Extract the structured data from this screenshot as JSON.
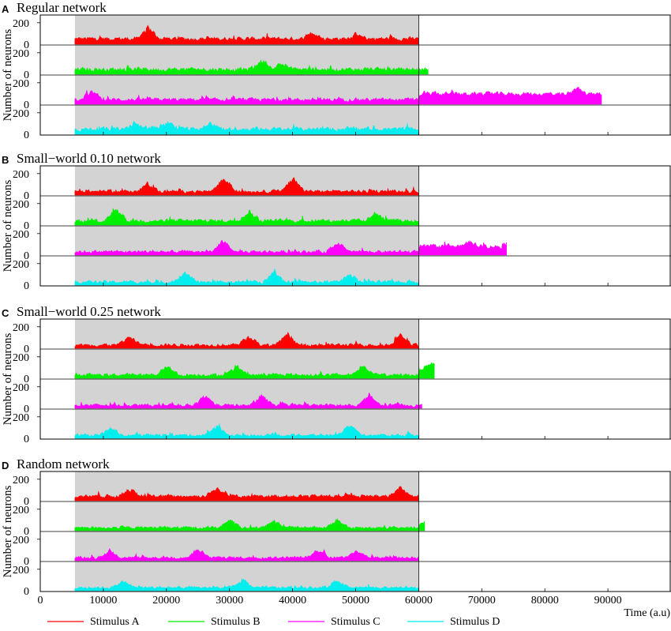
{
  "chart_data": {
    "type": "area",
    "xlabel": "Time (a.u)",
    "ylabel": "Number of neurons",
    "xlim": [
      0,
      100000
    ],
    "x_ticks": [
      0,
      10000,
      20000,
      30000,
      40000,
      50000,
      60000,
      70000,
      80000,
      90000
    ],
    "y_ticks": [
      0,
      200
    ],
    "ylim_per_trace": [
      0,
      250
    ],
    "stimulus_window": [
      5500,
      60000
    ],
    "stimulus_window_color": "#d3d3d3",
    "series": [
      {
        "name": "Stimulus A",
        "color": "#ff0000"
      },
      {
        "name": "Stimulus B",
        "color": "#00ee00"
      },
      {
        "name": "Stimulus C",
        "color": "#ff00ff"
      },
      {
        "name": "Stimulus D",
        "color": "#00eeee"
      }
    ],
    "panels": [
      {
        "letter": "A",
        "title": "Regular network",
        "traces": [
          {
            "series": "Stimulus A",
            "end": 60000,
            "mean": 40,
            "amp": 55,
            "peaks": [
              [
                17000,
                150
              ],
              [
                43000,
                110
              ],
              [
                50000,
                80
              ]
            ]
          },
          {
            "series": "Stimulus B",
            "end": 61500,
            "mean": 25,
            "amp": 60,
            "peaks": [
              [
                35000,
                120
              ],
              [
                38000,
                90
              ]
            ]
          },
          {
            "series": "Stimulus C",
            "end": 89000,
            "mean": 30,
            "amp": 50,
            "peaks": [
              [
                8000,
                120
              ]
            ],
            "tail_start": 60000,
            "tail_mean": 110,
            "tail_amp": 60,
            "tail_peaks": [
              [
                85000,
                180
              ]
            ]
          },
          {
            "series": "Stimulus D",
            "end": 60000,
            "mean": 30,
            "amp": 60,
            "peaks": [
              [
                15000,
                90
              ],
              [
                20000,
                100
              ],
              [
                27000,
                90
              ]
            ]
          }
        ]
      },
      {
        "letter": "B",
        "title": "Small−world 0.10 network",
        "traces": [
          {
            "series": "Stimulus A",
            "end": 60000,
            "mean": 20,
            "amp": 45,
            "peaks": [
              [
                17000,
                100
              ],
              [
                29000,
                160
              ],
              [
                40000,
                170
              ]
            ]
          },
          {
            "series": "Stimulus B",
            "end": 60000,
            "mean": 20,
            "amp": 55,
            "peaks": [
              [
                12000,
                130
              ],
              [
                33000,
                120
              ],
              [
                53000,
                110
              ]
            ]
          },
          {
            "series": "Stimulus C",
            "end": 74000,
            "mean": 15,
            "amp": 45,
            "peaks": [
              [
                29000,
                120
              ],
              [
                47000,
                110
              ]
            ],
            "tail_start": 60000,
            "tail_mean": 90,
            "tail_amp": 55,
            "tail_peaks": [
              [
                68000,
                140
              ]
            ]
          },
          {
            "series": "Stimulus D",
            "end": 60000,
            "mean": 10,
            "amp": 45,
            "peaks": [
              [
                23000,
                110
              ],
              [
                37000,
                110
              ],
              [
                49000,
                90
              ]
            ]
          }
        ]
      },
      {
        "letter": "C",
        "title": "Small−world 0.25 network",
        "traces": [
          {
            "series": "Stimulus A",
            "end": 60000,
            "mean": 15,
            "amp": 45,
            "peaks": [
              [
                14000,
                100
              ],
              [
                33000,
                110
              ],
              [
                39000,
                110
              ],
              [
                57000,
                110
              ]
            ]
          },
          {
            "series": "Stimulus B",
            "end": 62500,
            "mean": 15,
            "amp": 45,
            "peaks": [
              [
                20000,
                110
              ],
              [
                31000,
                110
              ],
              [
                51000,
                110
              ]
            ],
            "tail_start": 60000,
            "tail_mean": 110,
            "tail_amp": 60,
            "tail_peaks": [
              [
                62300,
                170
              ]
            ]
          },
          {
            "series": "Stimulus C",
            "end": 60500,
            "mean": 15,
            "amp": 40,
            "peaks": [
              [
                26000,
                110
              ],
              [
                35000,
                110
              ],
              [
                52000,
                110
              ]
            ]
          },
          {
            "series": "Stimulus D",
            "end": 60000,
            "mean": 15,
            "amp": 40,
            "peaks": [
              [
                11000,
                90
              ],
              [
                28000,
                110
              ],
              [
                49000,
                110
              ]
            ]
          }
        ]
      },
      {
        "letter": "D",
        "title": "Random network",
        "traces": [
          {
            "series": "Stimulus A",
            "end": 60000,
            "mean": 30,
            "amp": 50,
            "peaks": [
              [
                14000,
                100
              ],
              [
                28000,
                120
              ],
              [
                57000,
                110
              ]
            ]
          },
          {
            "series": "Stimulus B",
            "end": 61000,
            "mean": 15,
            "amp": 40,
            "peaks": [
              [
                30000,
                100
              ],
              [
                37000,
                90
              ],
              [
                47000,
                90
              ]
            ],
            "tail_start": 60000,
            "tail_mean": 50,
            "tail_amp": 40,
            "tail_peaks": [
              [
                60800,
                90
              ]
            ]
          },
          {
            "series": "Stimulus C",
            "end": 60000,
            "mean": 15,
            "amp": 40,
            "peaks": [
              [
                11000,
                90
              ],
              [
                25000,
                90
              ],
              [
                44000,
                100
              ],
              [
                50000,
                90
              ]
            ]
          },
          {
            "series": "Stimulus D",
            "end": 60000,
            "mean": 15,
            "amp": 40,
            "peaks": [
              [
                13000,
                80
              ],
              [
                32000,
                90
              ],
              [
                47000,
                90
              ]
            ]
          }
        ]
      }
    ]
  }
}
